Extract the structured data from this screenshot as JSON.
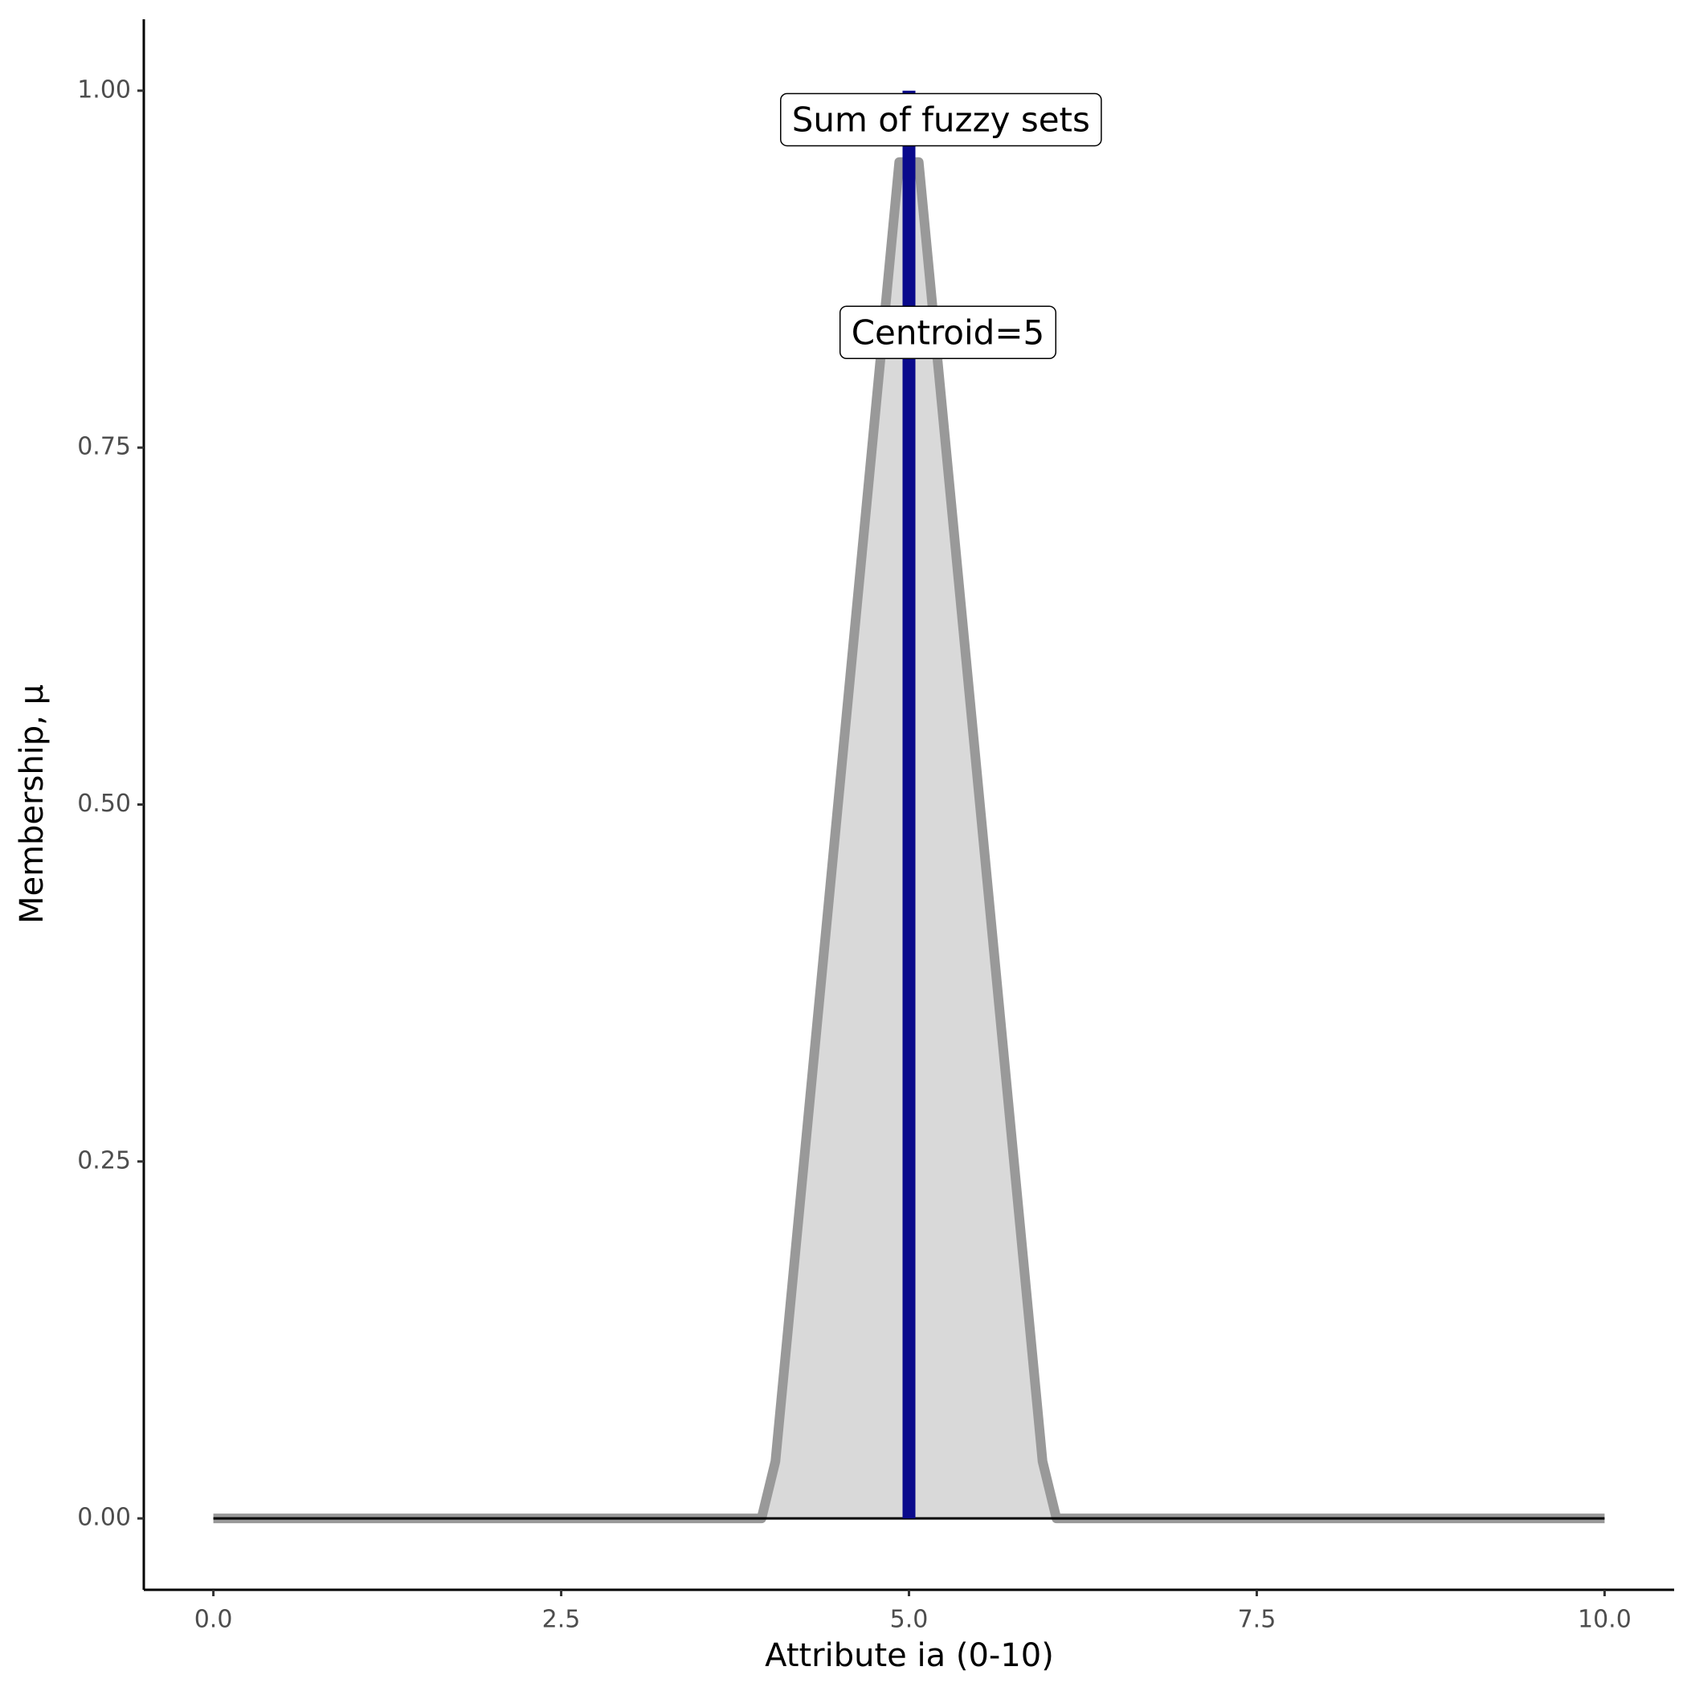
{
  "chart_data": {
    "type": "area",
    "x_label": "Attribute ia (0-10)",
    "y_label": "Membership, μ",
    "x": [
      0,
      3.94,
      4.04,
      4.93,
      5.07,
      5.96,
      6.06,
      10
    ],
    "values": [
      0,
      0,
      0.04,
      0.95,
      0.95,
      0.04,
      0,
      0
    ],
    "fill": "#d9d9d9",
    "color": "#999999",
    "vline": {
      "x": 5,
      "ymin": 0,
      "ymax": 1,
      "color": "#0a0a8c"
    },
    "hline": {
      "y": 0,
      "xmin": 0,
      "xmax": 10,
      "color": "#000000"
    },
    "annotations": [
      {
        "text": "Sum of fuzzy sets",
        "x": 5.23,
        "y": 0.978
      },
      {
        "text": "Centroid=5",
        "x": 5.28,
        "y": 0.829
      }
    ],
    "xlim": [
      -0.5,
      10.5
    ],
    "ylim": [
      -0.05,
      1.05
    ],
    "xticks": [
      {
        "value": 0,
        "label": "0.0"
      },
      2.5,
      {
        "value": 5,
        "label": "5.0"
      },
      7.5,
      {
        "value": 10,
        "label": "10.0"
      }
    ],
    "yticks": [
      {
        "value": 0,
        "label": "0.00"
      },
      0.25,
      {
        "value": 0.5,
        "label": "0.50"
      },
      0.75,
      {
        "value": 1,
        "label": "1.00"
      }
    ],
    "grid": false
  }
}
